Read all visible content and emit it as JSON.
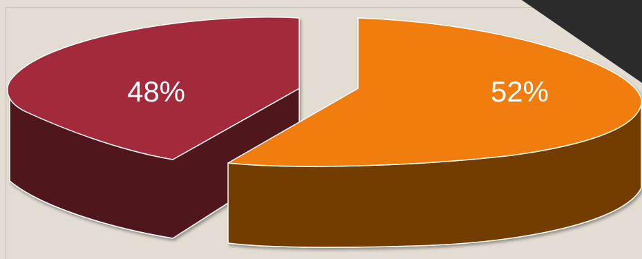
{
  "chart_data": {
    "type": "pie",
    "style": "3d-exploded",
    "slices": [
      {
        "label": "48%",
        "value": 48,
        "color": "#a3293a",
        "side_color": "#4f141d"
      },
      {
        "label": "52%",
        "value": 52,
        "color": "#f07d0a",
        "side_color": "#733d03"
      }
    ],
    "title": "",
    "legend": "none",
    "label_color": "#ffffff"
  },
  "page": {
    "background": "#e2dcd2",
    "corner_color": "#2b2b2b"
  }
}
